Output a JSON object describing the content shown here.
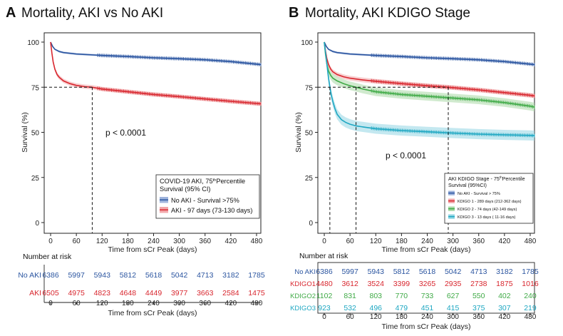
{
  "chart_data": [
    {
      "type": "line",
      "panel_letter": "A",
      "title": "Mortality, AKI vs No  AKI",
      "xlabel": "Time from sCr Peak  (days)",
      "ylabel": "Survival (%)",
      "xlim": [
        -15,
        490
      ],
      "ylim": [
        0,
        100
      ],
      "x_ticks": [
        0,
        60,
        120,
        180,
        240,
        300,
        360,
        420,
        480
      ],
      "y_ticks": [
        0,
        25,
        50,
        75,
        100
      ],
      "reference_lines": [
        {
          "type": "hline",
          "y": 75,
          "x_from": -15,
          "x_to": 97
        },
        {
          "type": "vline",
          "x": 97,
          "y_from": 0,
          "y_to": 75
        }
      ],
      "annotation": "p < 0.0001",
      "legend": {
        "title_line1": "COVID-19 AKI, 75",
        "title_sup": "th",
        "title_line1b": "Percentile",
        "title_line2": "Survival (95% CI)",
        "placement": "bottom-right"
      },
      "series": [
        {
          "name": "No AKI - Survival >75%",
          "color": "#2b55a0",
          "band_color": "#9fb4dc",
          "x": [
            0,
            5,
            10,
            20,
            30,
            45,
            60,
            90,
            120,
            180,
            240,
            300,
            360,
            420,
            480,
            490
          ],
          "y": [
            100,
            97.5,
            96,
            94.8,
            94.2,
            93.8,
            93.4,
            93,
            92.6,
            92,
            91.3,
            90.8,
            90.2,
            89.2,
            87.8,
            87.5
          ],
          "band": 0.6
        },
        {
          "name": "AKI - 97 days (73-130 days)",
          "color": "#d8262e",
          "band_color": "#f2a7aa",
          "x": [
            0,
            3,
            6,
            10,
            15,
            20,
            30,
            45,
            60,
            80,
            97,
            120,
            180,
            240,
            300,
            360,
            420,
            480,
            490
          ],
          "y": [
            100,
            94,
            89,
            85,
            82,
            80.5,
            78.5,
            77,
            76,
            75.3,
            75,
            74,
            72.5,
            71,
            69.8,
            68.5,
            67.2,
            66,
            65.8
          ],
          "band": 1.2
        }
      ],
      "risk_table": {
        "header": "Number at risk",
        "xlabel": "Time from sCr Peak  (days)",
        "rows": [
          {
            "label": "No AKI",
            "color": "#2b55a0",
            "values": [
              "6386",
              "5997",
              "5943",
              "5812",
              "5618",
              "5042",
              "4713",
              "3182",
              "1785"
            ]
          },
          {
            "label": "AKI",
            "color": "#d8262e",
            "values": [
              "6505",
              "4975",
              "4823",
              "4648",
              "4449",
              "3977",
              "3663",
              "2584",
              "1475"
            ]
          }
        ]
      }
    },
    {
      "type": "line",
      "panel_letter": "B",
      "title": "Mortality, AKI KDIGO Stage",
      "xlabel": "Time from sCr Peak  (days)",
      "ylabel": "Survival (%)",
      "xlim": [
        -15,
        490
      ],
      "ylim": [
        0,
        100
      ],
      "x_ticks": [
        0,
        60,
        120,
        180,
        240,
        300,
        360,
        420,
        480
      ],
      "y_ticks": [
        0,
        25,
        50,
        75,
        100
      ],
      "reference_lines": [
        {
          "type": "hline",
          "y": 75,
          "x_from": -15,
          "x_to": 289
        },
        {
          "type": "vline",
          "x": 13,
          "y_from": 0,
          "y_to": 75
        },
        {
          "type": "vline",
          "x": 74,
          "y_from": 0,
          "y_to": 75
        },
        {
          "type": "vline",
          "x": 289,
          "y_from": 0,
          "y_to": 75
        }
      ],
      "annotation": "p < 0.0001",
      "legend": {
        "title_line1": "AKI KDIGO Stage - 75",
        "title_sup": "th",
        "title_line1b": "Percentile",
        "title_line2": "Survival (95%CI)",
        "placement": "bottom-right"
      },
      "series": [
        {
          "name": "No AKI - Survival > 75%",
          "color": "#2b55a0",
          "band_color": "#9fb4dc",
          "x": [
            0,
            5,
            10,
            20,
            30,
            45,
            60,
            90,
            120,
            180,
            240,
            300,
            360,
            420,
            480,
            490
          ],
          "y": [
            100,
            97.5,
            96,
            94.8,
            94.2,
            93.8,
            93.4,
            93,
            92.6,
            92,
            91.3,
            90.8,
            90.2,
            89.2,
            87.8,
            87.5
          ],
          "band": 0.6
        },
        {
          "name": "KDIGO 1 - 289 days (212-362 days)",
          "color": "#d8262e",
          "band_color": "#f2a7aa",
          "x": [
            0,
            3,
            6,
            10,
            15,
            20,
            30,
            45,
            60,
            90,
            120,
            180,
            240,
            289,
            360,
            420,
            480,
            490
          ],
          "y": [
            100,
            95,
            91,
            87.5,
            85,
            83.5,
            82,
            80.8,
            80,
            79,
            78.3,
            77,
            75.8,
            75,
            73.5,
            72,
            70.5,
            70.2
          ],
          "band": 1.3
        },
        {
          "name": "KDIGO 2 - 74 days (42-149 days)",
          "color": "#3faa46",
          "band_color": "#a9d9a6",
          "x": [
            0,
            3,
            6,
            10,
            15,
            20,
            30,
            45,
            60,
            74,
            90,
            120,
            180,
            240,
            300,
            360,
            420,
            480,
            490
          ],
          "y": [
            100,
            93,
            88,
            84,
            81.5,
            80,
            78.5,
            77,
            75.8,
            75,
            74,
            72.5,
            71,
            70,
            69,
            68,
            66.5,
            64.5,
            64
          ],
          "band": 2.4
        },
        {
          "name": "KDIGO 3 - 13 days (  11-16 days)",
          "color": "#1ea7c2",
          "band_color": "#93d6e4",
          "x": [
            0,
            2,
            4,
            6,
            8,
            10,
            13,
            16,
            20,
            25,
            30,
            40,
            50,
            60,
            75,
            90,
            120,
            180,
            240,
            300,
            360,
            420,
            480,
            490
          ],
          "y": [
            100,
            96,
            92,
            88,
            84,
            80,
            75,
            71,
            67,
            63,
            60,
            57,
            55.5,
            54.5,
            53.5,
            53,
            52,
            51,
            50.3,
            49.6,
            49,
            48.6,
            48.3,
            48.2
          ],
          "band": 2.8
        }
      ],
      "risk_table": {
        "header": "Number at risk",
        "xlabel": "Time from sCr Peak  (days)",
        "rows": [
          {
            "label": "No AKI",
            "color": "#2b55a0",
            "values": [
              "6386",
              "5997",
              "5943",
              "5812",
              "5618",
              "5042",
              "4713",
              "3182",
              "1785"
            ]
          },
          {
            "label": "KDIGO1",
            "color": "#d8262e",
            "values": [
              "4480",
              "3612",
              "3524",
              "3399",
              "3265",
              "2935",
              "2738",
              "1875",
              "1016"
            ]
          },
          {
            "label": "KDIGO2",
            "color": "#3faa46",
            "values": [
              "1102",
              "831",
              "803",
              "770",
              "733",
              "627",
              "550",
              "402",
              "240"
            ]
          },
          {
            "label": "KDIGO3",
            "color": "#1ea7c2",
            "values": [
              "923",
              "532",
              "496",
              "479",
              "451",
              "415",
              "375",
              "307",
              "219"
            ]
          }
        ]
      }
    }
  ]
}
